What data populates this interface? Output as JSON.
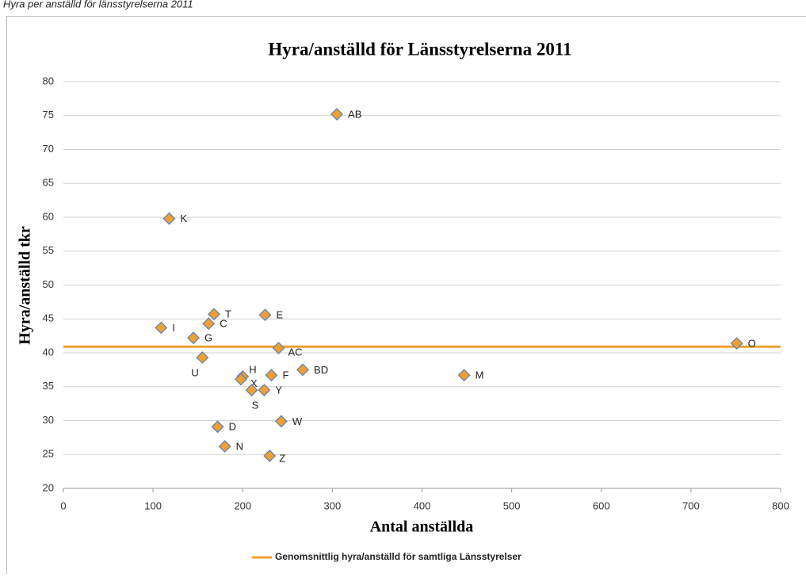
{
  "caption": "Hyra per anställd för länsstyrelserna 2011",
  "chart_data": {
    "type": "scatter",
    "title": "Hyra/anställd för Länsstyrelserna 2011",
    "x_label": "Antal anställda",
    "y_label": "Hyra/anställd tkr",
    "labels": [
      "AB",
      "K",
      "T",
      "E",
      "I",
      "C",
      "G",
      "AC",
      "O",
      "U",
      "H",
      "X",
      "F",
      "BD",
      "M",
      "S",
      "Y",
      "W",
      "D",
      "N",
      "Z"
    ],
    "x": [
      305,
      118,
      168,
      225,
      109,
      162,
      145,
      240,
      751,
      155,
      200,
      198,
      232,
      267,
      447,
      210,
      224,
      243,
      172,
      180,
      230
    ],
    "values": [
      75.2,
      59.8,
      45.7,
      45.6,
      43.7,
      44.3,
      42.2,
      40.7,
      41.4,
      39.3,
      36.5,
      36.1,
      36.7,
      37.5,
      36.7,
      34.5,
      34.5,
      29.9,
      29.1,
      26.2,
      24.8
    ],
    "color": "#f0a030",
    "edge_color": "#5b7fb5",
    "reference_line": {
      "name": "Genomsnittlig hyra/anställd för samtliga Länsstyrelser",
      "value": 40.9,
      "color": "#f0a030"
    },
    "xlim": [
      0,
      800
    ],
    "xticks": [
      0,
      100,
      200,
      300,
      400,
      500,
      600,
      700,
      800
    ],
    "ylim": [
      20,
      80
    ],
    "yticks": [
      20,
      25,
      30,
      35,
      40,
      45,
      50,
      55,
      60,
      65,
      70,
      75,
      80
    ],
    "grid": true,
    "legend": "bottom"
  }
}
